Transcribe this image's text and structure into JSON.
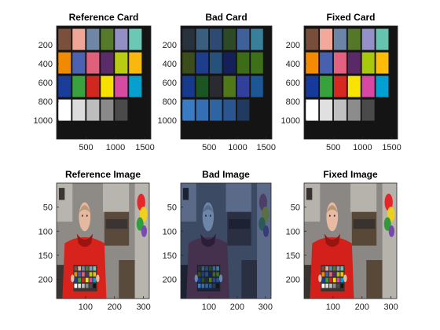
{
  "figure": {
    "background": "#ffffff"
  },
  "chart_data": [
    {
      "type": "image",
      "title": "Reference Card",
      "content": "colorchecker",
      "variant": "reference",
      "xlim": [
        0,
        1600
      ],
      "ylim": [
        0,
        1200
      ],
      "xticks": [
        500,
        1000,
        1500
      ],
      "xtick_labels": [
        "500",
        "1000",
        "1500"
      ],
      "yticks": [
        200,
        400,
        600,
        800,
        1000
      ],
      "ytick_labels": [
        "200",
        "400",
        "600",
        "800",
        "1000"
      ]
    },
    {
      "type": "image",
      "title": "Bad Card",
      "content": "colorchecker",
      "variant": "bad",
      "xlim": [
        0,
        1600
      ],
      "ylim": [
        0,
        1200
      ],
      "xticks": [
        500,
        1000,
        1500
      ],
      "xtick_labels": [
        "500",
        "1000",
        "1500"
      ],
      "yticks": [
        200,
        400,
        600,
        800,
        1000
      ],
      "ytick_labels": [
        "200",
        "400",
        "600",
        "800",
        "1000"
      ]
    },
    {
      "type": "image",
      "title": "Fixed Card",
      "content": "colorchecker",
      "variant": "fixed",
      "xlim": [
        0,
        1600
      ],
      "ylim": [
        0,
        1200
      ],
      "xticks": [
        500,
        1000,
        1500
      ],
      "xtick_labels": [
        "500",
        "1000",
        "1500"
      ],
      "yticks": [
        200,
        400,
        600,
        800,
        1000
      ],
      "ytick_labels": [
        "200",
        "400",
        "600",
        "800",
        "1000"
      ]
    },
    {
      "type": "image",
      "title": "Reference Image",
      "content": "photo",
      "variant": "reference",
      "xlim": [
        0,
        320
      ],
      "ylim": [
        0,
        240
      ],
      "xticks": [
        100,
        200,
        300
      ],
      "xtick_labels": [
        "100",
        "200",
        "300"
      ],
      "yticks": [
        50,
        100,
        150,
        200
      ],
      "ytick_labels": [
        "50",
        "100",
        "150",
        "200"
      ]
    },
    {
      "type": "image",
      "title": "Bad Image",
      "content": "photo",
      "variant": "bad",
      "xlim": [
        0,
        320
      ],
      "ylim": [
        0,
        240
      ],
      "xticks": [
        100,
        200,
        300
      ],
      "xtick_labels": [
        "100",
        "200",
        "300"
      ],
      "yticks": [
        50,
        100,
        150,
        200
      ],
      "ytick_labels": [
        "50",
        "100",
        "150",
        "200"
      ]
    },
    {
      "type": "image",
      "title": "Fixed Image",
      "content": "photo",
      "variant": "fixed",
      "xlim": [
        0,
        320
      ],
      "ylim": [
        0,
        240
      ],
      "xticks": [
        100,
        200,
        300
      ],
      "xtick_labels": [
        "100",
        "200",
        "300"
      ],
      "yticks": [
        50,
        100,
        150,
        200
      ],
      "ytick_labels": [
        "50",
        "100",
        "150",
        "200"
      ]
    }
  ],
  "card_palettes": {
    "reference": [
      [
        "#7a4f3c",
        "#f0a696",
        "#6f86a6",
        "#557a2a",
        "#928fc4",
        "#6cc8b4"
      ],
      [
        "#f08a00",
        "#4b62b0",
        "#e0607b",
        "#5b2c6a",
        "#b8cc12",
        "#f8b80c"
      ],
      [
        "#1a3d9a",
        "#3aa23c",
        "#d2271f",
        "#f5e000",
        "#d64aa0",
        "#06a0cf"
      ],
      [
        "#ffffff",
        "#dcdcdc",
        "#bdbdbd",
        "#8a8a8a",
        "#4a4a4a",
        "#141414"
      ]
    ],
    "bad": [
      [
        "#27323c",
        "#3a5f7e",
        "#2c4a72",
        "#2c4a26",
        "#40609a",
        "#3a7f9a"
      ],
      [
        "#3a4d1a",
        "#1e3d8a",
        "#25527a",
        "#14205a",
        "#3c6c18",
        "#3d7018"
      ],
      [
        "#163a8c",
        "#1d5424",
        "#2a2a30",
        "#4f7818",
        "#31409a",
        "#1d5694"
      ],
      [
        "#3a7bc4",
        "#336fb2",
        "#2e64a2",
        "#2a5590",
        "#213a60",
        "#141414"
      ]
    ],
    "fixed": [
      [
        "#784d3a",
        "#f2a89a",
        "#6c84a6",
        "#527828",
        "#9490c8",
        "#64c4b0"
      ],
      [
        "#f48a00",
        "#4860b0",
        "#e26080",
        "#5a2a68",
        "#a8c80c",
        "#fcbc08"
      ],
      [
        "#163a9c",
        "#36a23c",
        "#d42820",
        "#f8e400",
        "#d848a2",
        "#00a0d4"
      ],
      [
        "#ffffff",
        "#e0e0e0",
        "#c0c0c0",
        "#8c8c8c",
        "#4a4a4a",
        "#141414"
      ]
    ]
  },
  "photo_palettes": {
    "reference": {
      "bg": "#8e8a86",
      "wall": "#b8b4ae",
      "shelf": "#5a4a3c",
      "dark": "#3a3532",
      "hoodie": "#d8221c",
      "hoodie_dark": "#9c1410",
      "skin": "#e6b8a0",
      "hair": "#b79a76",
      "board": "#f2f2f2",
      "flower1": "#e8262a",
      "flower2": "#f2d11e",
      "flower3": "#2f9e3c",
      "flower4": "#7a4ab0"
    },
    "bad": {
      "bg": "#3c4a64",
      "wall": "#5a6a88",
      "shelf": "#2a3042",
      "dark": "#1c2232",
      "hoodie": "#45304e",
      "hoodie_dark": "#2c1e38",
      "skin": "#6d86a8",
      "hair": "#566c8a",
      "board": "#8aa0c0",
      "flower1": "#4d3e66",
      "flower2": "#5a7040",
      "flower3": "#2c5a5a",
      "flower4": "#3a3a7a"
    },
    "fixed": {
      "bg": "#8a8784",
      "wall": "#b6b2ac",
      "shelf": "#574838",
      "dark": "#38332f",
      "hoodie": "#d4201a",
      "hoodie_dark": "#981410",
      "skin": "#e8baa2",
      "hair": "#b49676",
      "board": "#f0f0f0",
      "flower1": "#e4262a",
      "flower2": "#eecf1e",
      "flower3": "#2e9a3a",
      "flower4": "#7648ae"
    }
  }
}
